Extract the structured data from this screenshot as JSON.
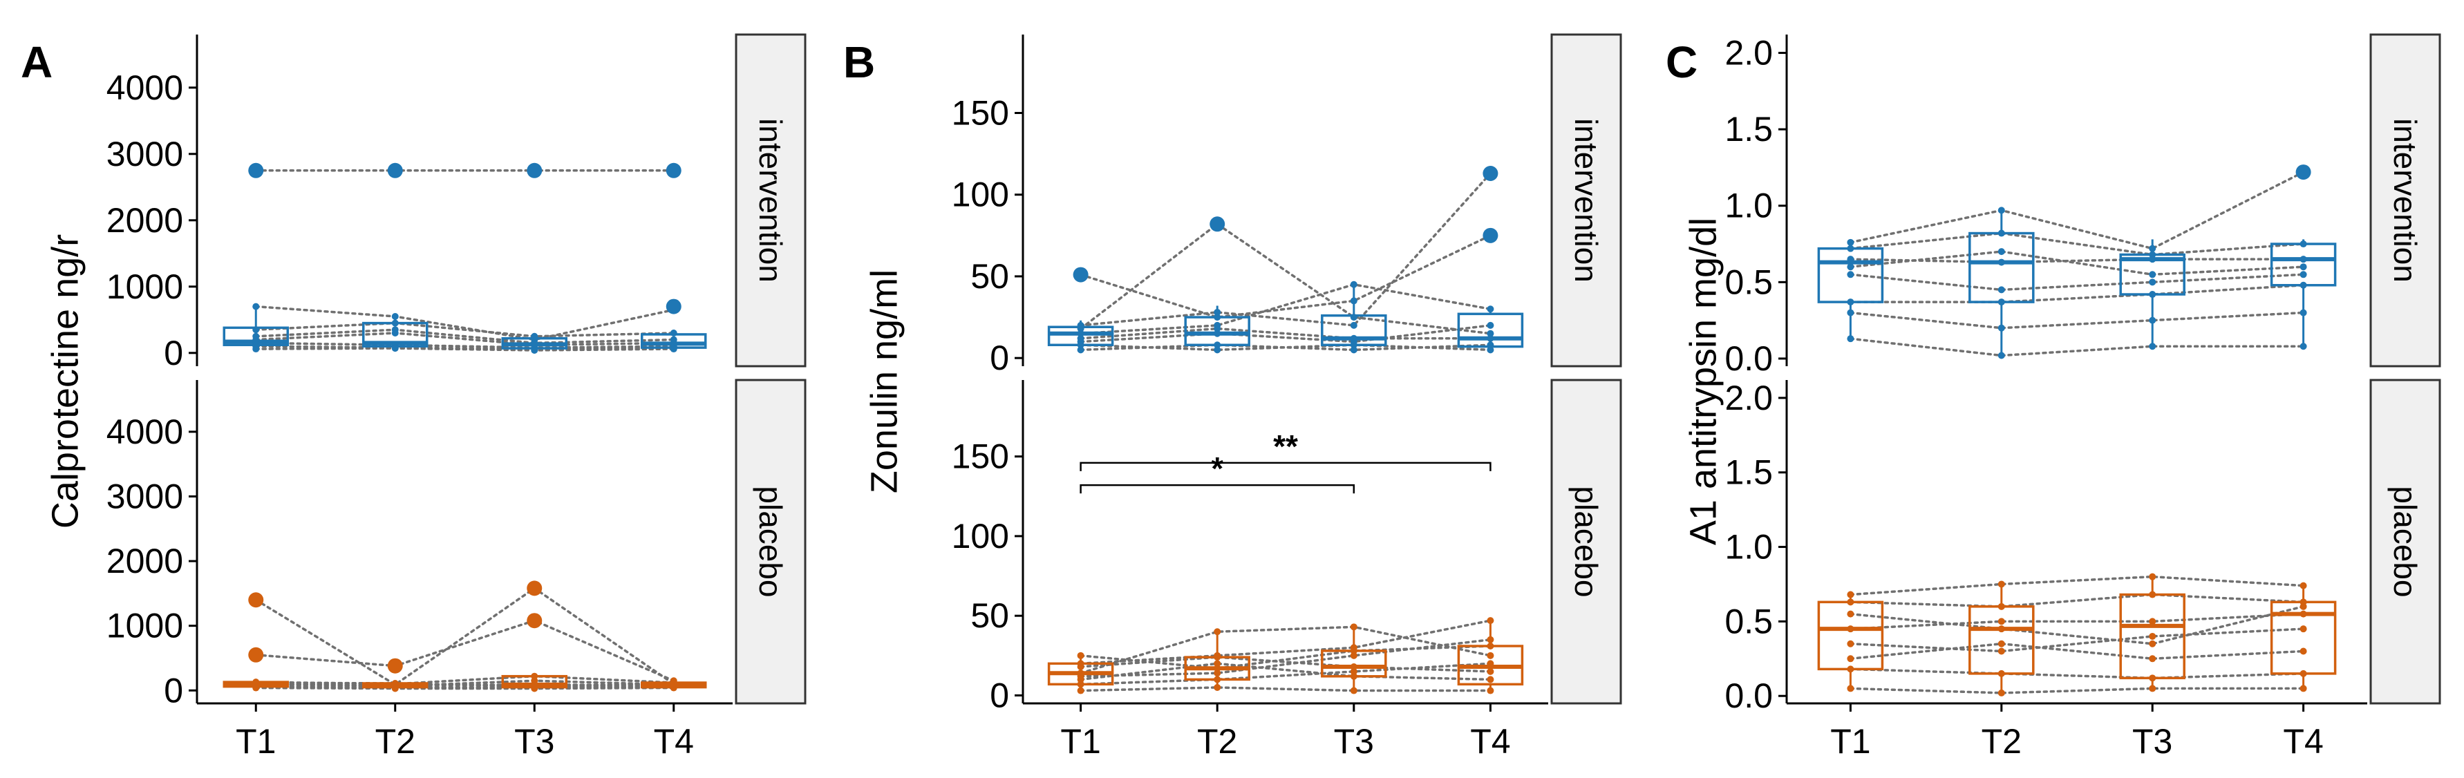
{
  "colors": {
    "intervention": "#1f77b4",
    "placebo": "#d2600f",
    "connector": "#707070",
    "strip_fill": "#f0f0f0"
  },
  "chart_data": [
    {
      "type": "box",
      "panel_tag": "A",
      "ylabel": "Calprotectine ng/r",
      "categories": [
        "T1",
        "T2",
        "T3",
        "T4"
      ],
      "ylim": [
        -200,
        4800
      ],
      "yticks": [
        0,
        1000,
        2000,
        3000,
        4000
      ],
      "facets": [
        {
          "name": "intervention",
          "boxes": [
            {
              "q1": 120,
              "median": 170,
              "q3": 380,
              "wlo": 60,
              "whi": 700
            },
            {
              "q1": 100,
              "median": 150,
              "q3": 450,
              "wlo": 60,
              "whi": 580
            },
            {
              "q1": 70,
              "median": 130,
              "q3": 220,
              "wlo": 30,
              "whi": 300
            },
            {
              "q1": 80,
              "median": 140,
              "q3": 280,
              "wlo": 40,
              "whi": 350
            }
          ],
          "outliers": [
            {
              "x": "T1",
              "y": 2750
            },
            {
              "x": "T2",
              "y": 2750
            },
            {
              "x": "T3",
              "y": 2750
            },
            {
              "x": "T4",
              "y": 2750
            },
            {
              "x": "T4",
              "y": 700
            }
          ],
          "subjects": [
            [
              2750,
              2750,
              2750,
              2750
            ],
            [
              700,
              550,
              200,
              650
            ],
            [
              350,
              450,
              250,
              300
            ],
            [
              200,
              300,
              120,
              150
            ],
            [
              150,
              120,
              80,
              100
            ],
            [
              100,
              80,
              60,
              80
            ],
            [
              60,
              70,
              40,
              60
            ],
            [
              250,
              350,
              150,
              200
            ]
          ]
        },
        {
          "name": "placebo",
          "boxes": [
            {
              "q1": 60,
              "median": 90,
              "q3": 130,
              "wlo": 20,
              "whi": 180
            },
            {
              "q1": 50,
              "median": 80,
              "q3": 110,
              "wlo": 20,
              "whi": 150
            },
            {
              "q1": 50,
              "median": 90,
              "q3": 220,
              "wlo": 20,
              "whi": 250
            },
            {
              "q1": 50,
              "median": 80,
              "q3": 120,
              "wlo": 20,
              "whi": 150
            }
          ],
          "outliers": [
            {
              "x": "T1",
              "y": 1400
            },
            {
              "x": "T1",
              "y": 550
            },
            {
              "x": "T2",
              "y": 380
            },
            {
              "x": "T3",
              "y": 1580
            },
            {
              "x": "T3",
              "y": 1080
            }
          ],
          "subjects": [
            [
              1400,
              90,
              1580,
              100
            ],
            [
              550,
              380,
              1080,
              150
            ],
            [
              130,
              100,
              220,
              120
            ],
            [
              100,
              80,
              90,
              80
            ],
            [
              60,
              50,
              50,
              60
            ],
            [
              40,
              30,
              30,
              40
            ],
            [
              90,
              70,
              150,
              90
            ],
            [
              120,
              110,
              60,
              100
            ]
          ]
        }
      ]
    },
    {
      "type": "box",
      "panel_tag": "B",
      "ylabel": "Zonulin ng/ml",
      "categories": [
        "T1",
        "T2",
        "T3",
        "T4"
      ],
      "ylim": [
        -5,
        198
      ],
      "yticks": [
        0,
        50,
        100,
        150
      ],
      "facets": [
        {
          "name": "intervention",
          "boxes": [
            {
              "q1": 8,
              "median": 15,
              "q3": 19,
              "wlo": 3,
              "whi": 23
            },
            {
              "q1": 8,
              "median": 15,
              "q3": 25,
              "wlo": 3,
              "whi": 32
            },
            {
              "q1": 8,
              "median": 12,
              "q3": 26,
              "wlo": 3,
              "whi": 45
            },
            {
              "q1": 7,
              "median": 12,
              "q3": 27,
              "wlo": 3,
              "whi": 32
            }
          ],
          "outliers": [
            {
              "x": "T1",
              "y": 51
            },
            {
              "x": "T2",
              "y": 82
            },
            {
              "x": "T4",
              "y": 113
            },
            {
              "x": "T4",
              "y": 75
            }
          ],
          "subjects": [
            [
              51,
              25,
              35,
              75
            ],
            [
              20,
              28,
              20,
              113
            ],
            [
              15,
              20,
              45,
              30
            ],
            [
              10,
              15,
              10,
              20
            ],
            [
              18,
              82,
              25,
              15
            ],
            [
              5,
              8,
              5,
              8
            ],
            [
              12,
              18,
              12,
              12
            ],
            [
              8,
              5,
              8,
              5
            ]
          ]
        },
        {
          "name": "placebo",
          "boxes": [
            {
              "q1": 7,
              "median": 14,
              "q3": 20,
              "wlo": 2,
              "whi": 26
            },
            {
              "q1": 10,
              "median": 17,
              "q3": 24,
              "wlo": 3,
              "whi": 40
            },
            {
              "q1": 12,
              "median": 18,
              "q3": 28,
              "wlo": 3,
              "whi": 43
            },
            {
              "q1": 7,
              "median": 18,
              "q3": 31,
              "wlo": 3,
              "whi": 47
            }
          ],
          "outliers": [],
          "subjects": [
            [
              20,
              25,
              30,
              47
            ],
            [
              14,
              40,
              43,
              25
            ],
            [
              7,
              10,
              15,
              20
            ],
            [
              25,
              17,
              28,
              31
            ],
            [
              3,
              5,
              3,
              3
            ],
            [
              10,
              20,
              12,
              10
            ],
            [
              18,
              24,
              18,
              15
            ],
            [
              12,
              14,
              25,
              35
            ]
          ],
          "significance": [
            {
              "from": "T1",
              "to": "T3",
              "y": 132,
              "label": "*"
            },
            {
              "from": "T1",
              "to": "T4",
              "y": 146,
              "label": "**"
            }
          ]
        }
      ]
    },
    {
      "type": "box",
      "panel_tag": "C",
      "ylabel": "A1 antitrypsin mg/dl",
      "categories": [
        "T1",
        "T2",
        "T3",
        "T4"
      ],
      "ylim": [
        -0.05,
        2.12
      ],
      "yticks": [
        0,
        0.5,
        1,
        1.5,
        2
      ],
      "ytick_labels": [
        "0.0",
        "0.5",
        "1.0",
        "1.5",
        "2.0"
      ],
      "facets": [
        {
          "name": "intervention",
          "boxes": [
            {
              "q1": 0.37,
              "median": 0.63,
              "q3": 0.72,
              "wlo": 0.13,
              "whi": 0.76
            },
            {
              "q1": 0.37,
              "median": 0.63,
              "q3": 0.82,
              "wlo": 0.02,
              "whi": 0.97
            },
            {
              "q1": 0.42,
              "median": 0.65,
              "q3": 0.68,
              "wlo": 0.08,
              "whi": 0.78
            },
            {
              "q1": 0.48,
              "median": 0.65,
              "q3": 0.75,
              "wlo": 0.08,
              "whi": 0.78
            }
          ],
          "outliers": [
            {
              "x": "T4",
              "y": 1.22
            }
          ],
          "subjects": [
            [
              0.76,
              0.97,
              0.72,
              1.22
            ],
            [
              0.72,
              0.82,
              0.68,
              0.75
            ],
            [
              0.65,
              0.63,
              0.65,
              0.65
            ],
            [
              0.55,
              0.45,
              0.5,
              0.55
            ],
            [
              0.37,
              0.37,
              0.42,
              0.48
            ],
            [
              0.3,
              0.2,
              0.25,
              0.3
            ],
            [
              0.13,
              0.02,
              0.08,
              0.08
            ],
            [
              0.6,
              0.7,
              0.55,
              0.6
            ]
          ]
        },
        {
          "name": "placebo",
          "boxes": [
            {
              "q1": 0.18,
              "median": 0.45,
              "q3": 0.63,
              "wlo": 0.05,
              "whi": 0.68
            },
            {
              "q1": 0.15,
              "median": 0.45,
              "q3": 0.6,
              "wlo": 0.02,
              "whi": 0.75
            },
            {
              "q1": 0.12,
              "median": 0.47,
              "q3": 0.68,
              "wlo": 0.05,
              "whi": 0.8
            },
            {
              "q1": 0.15,
              "median": 0.55,
              "q3": 0.63,
              "wlo": 0.05,
              "whi": 0.74
            }
          ],
          "outliers": [],
          "subjects": [
            [
              0.68,
              0.75,
              0.8,
              0.74
            ],
            [
              0.63,
              0.6,
              0.68,
              0.63
            ],
            [
              0.45,
              0.5,
              0.5,
              0.55
            ],
            [
              0.35,
              0.3,
              0.4,
              0.45
            ],
            [
              0.18,
              0.15,
              0.12,
              0.15
            ],
            [
              0.05,
              0.02,
              0.05,
              0.05
            ],
            [
              0.55,
              0.45,
              0.35,
              0.6
            ],
            [
              0.25,
              0.35,
              0.25,
              0.3
            ]
          ]
        }
      ]
    }
  ]
}
